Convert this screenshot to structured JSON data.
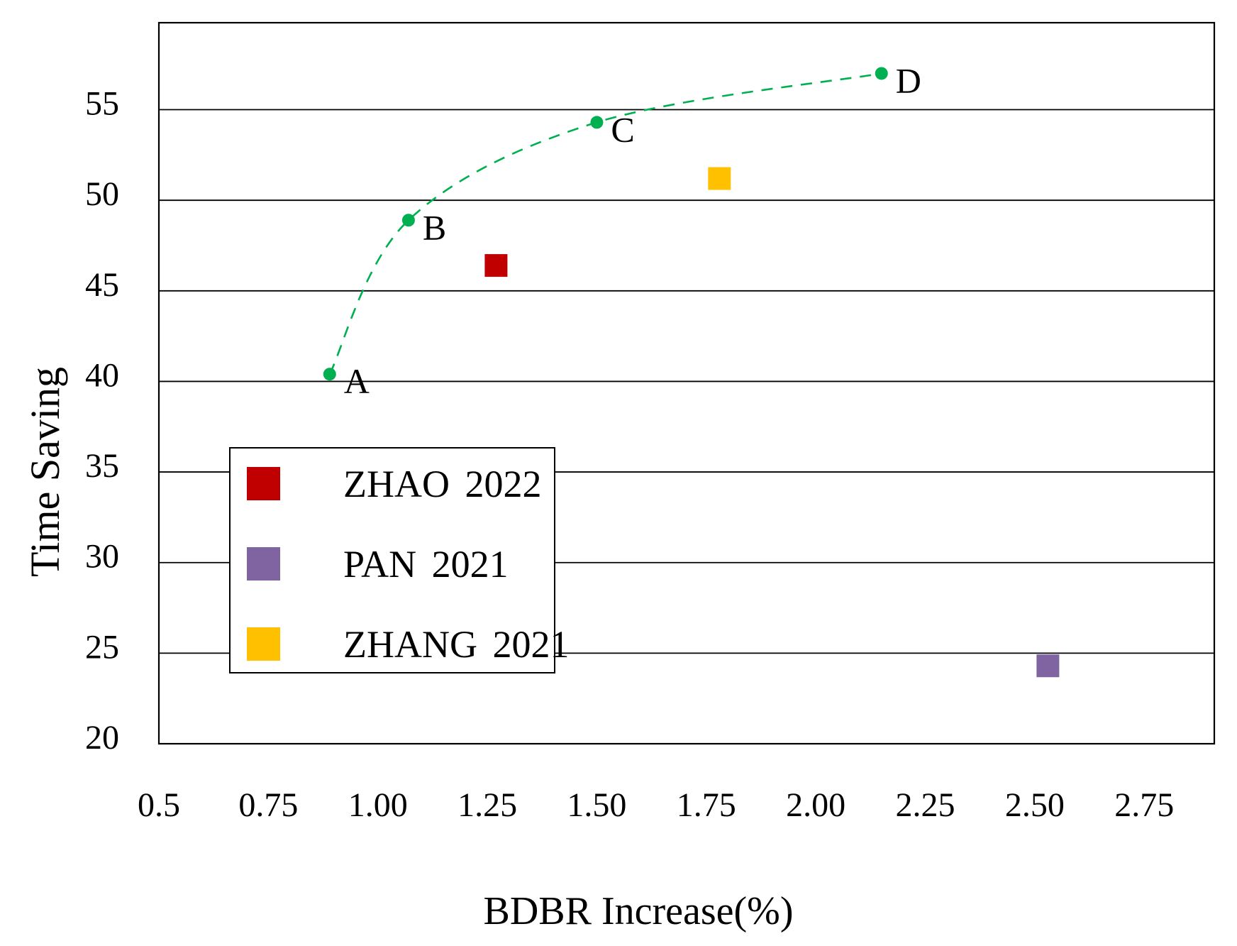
{
  "chart_data": {
    "type": "scatter",
    "title": "",
    "xlabel": "BDBR Increase(%)",
    "ylabel": "Time Saving",
    "xlim": [
      0.5,
      2.91
    ],
    "ylim": [
      20,
      59.8
    ],
    "grid": "horizontal",
    "x_ticks": [
      0.5,
      0.75,
      1.0,
      1.25,
      1.5,
      1.75,
      2.0,
      2.25,
      2.5,
      2.75
    ],
    "x_tick_labels": [
      "0.5",
      "0.75",
      "1.00",
      "1.25",
      "1.50",
      "1.75",
      "2.00",
      "2.25",
      "2.50",
      "2.75"
    ],
    "y_ticks": [
      20,
      25,
      30,
      35,
      40,
      45,
      50,
      55
    ],
    "curve_series": {
      "name": "green-dashed-curve",
      "color": "#00B050",
      "line_style": "dashed",
      "marker": "circle",
      "points": [
        {
          "label": "A",
          "x": 0.89,
          "y": 40.4
        },
        {
          "label": "B",
          "x": 1.07,
          "y": 48.9
        },
        {
          "label": "C",
          "x": 1.5,
          "y": 54.3
        },
        {
          "label": "D",
          "x": 2.15,
          "y": 57.0
        }
      ]
    },
    "scatter_points": [
      {
        "name": "ZHAO 2022",
        "color": "#C00000",
        "marker": "square",
        "x": 1.27,
        "y": 46.4
      },
      {
        "name": "PAN 2021",
        "color": "#8064A2",
        "marker": "square",
        "x": 2.53,
        "y": 24.3
      },
      {
        "name": "ZHANG 2021",
        "color": "#FFC000",
        "marker": "square",
        "x": 1.78,
        "y": 51.2
      }
    ],
    "legend": {
      "position": "inside-left-middle",
      "entries": [
        {
          "label": "ZHAO 2022",
          "color": "#C00000"
        },
        {
          "label": "PAN 2021",
          "color": "#8064A2"
        },
        {
          "label": "ZHANG 2021",
          "color": "#FFC000"
        }
      ]
    }
  }
}
